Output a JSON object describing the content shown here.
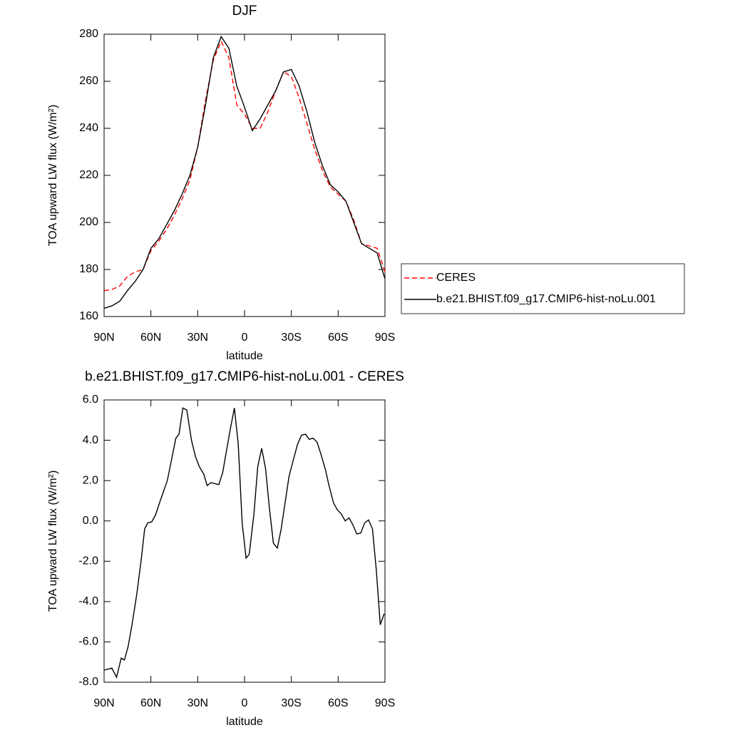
{
  "chart_data": [
    {
      "type": "line",
      "title": "DJF",
      "xlabel": "latitude",
      "ylabel": "TOA upward LW flux (W/m²)",
      "x": [
        90,
        85,
        80,
        75,
        70,
        65,
        60,
        55,
        50,
        45,
        40,
        35,
        30,
        25,
        20,
        15,
        10,
        5,
        0,
        -5,
        -10,
        -15,
        -20,
        -25,
        -30,
        -35,
        -40,
        -45,
        -50,
        -55,
        -60,
        -65,
        -70,
        -75,
        -80,
        -85,
        -90
      ],
      "series": [
        {
          "name": "CERES",
          "color": "#ff0000",
          "style": "dashed",
          "values": [
            171,
            171.5,
            173,
            177,
            179,
            180,
            188,
            192,
            197,
            203,
            210,
            218,
            232,
            252,
            269,
            277,
            270,
            250,
            246,
            240,
            240,
            247,
            256,
            264,
            262,
            253,
            242,
            231,
            222,
            215,
            212,
            209,
            201,
            191,
            190,
            189,
            179
          ]
        },
        {
          "name": "b.e21.BHIST.f09_g17.CMIP6-hist-noLu.001",
          "color": "#000000",
          "style": "solid",
          "values": [
            163.5,
            164.5,
            166.5,
            171,
            175,
            180,
            189,
            193,
            199,
            205,
            212,
            220,
            232,
            250,
            270,
            279,
            274,
            258,
            249,
            239,
            244,
            250,
            256,
            264,
            265,
            258,
            247,
            234,
            224,
            216,
            213,
            209,
            200,
            191,
            189,
            187,
            176
          ]
        }
      ],
      "xlim": [
        90,
        -90
      ],
      "xticks": [
        {
          "value": 90,
          "label": "90N"
        },
        {
          "value": 60,
          "label": "60N"
        },
        {
          "value": 30,
          "label": "30N"
        },
        0,
        {
          "value": -30,
          "label": "30S"
        },
        {
          "value": -60,
          "label": "60S"
        },
        {
          "value": -90,
          "label": "90S"
        }
      ],
      "ylim": [
        160,
        280
      ],
      "yticks": [
        160,
        180,
        200,
        220,
        240,
        260,
        280
      ],
      "legend": "right"
    },
    {
      "type": "line",
      "title": "b.e21.BHIST.f09_g17.CMIP6-hist-noLu.001 - CERES",
      "xlabel": "latitude",
      "ylabel": "TOA upward LW flux (W/m²)",
      "x": [
        90,
        85,
        82,
        79,
        77,
        74.5,
        72,
        69,
        66,
        64,
        62,
        59.5,
        57,
        54,
        49.5,
        44,
        42,
        39.5,
        37,
        34,
        31.5,
        29,
        26,
        24,
        21.5,
        16.5,
        14,
        11.5,
        9,
        6.5,
        4,
        1.5,
        -1,
        -3,
        -6,
        -8.5,
        -11,
        -13.5,
        -16,
        -18.5,
        -21,
        -23.5,
        -26,
        -28.5,
        -31.5,
        -34,
        -36.5,
        -39,
        -41.5,
        -44,
        -46.5,
        -49,
        -52,
        -54,
        -57,
        -59.5,
        -62,
        -64.5,
        -67,
        -69.5,
        -72,
        -74.5,
        -77,
        -79.5,
        -82,
        -84.5,
        -87,
        -89.5
      ],
      "color": "#000000",
      "values": [
        -7.4,
        -7.3,
        -7.75,
        -6.8,
        -6.9,
        -6.2,
        -5.1,
        -3.6,
        -1.8,
        -0.4,
        -0.1,
        -0.05,
        0.3,
        1.0,
        2.0,
        4.1,
        4.3,
        5.6,
        5.5,
        4.0,
        3.2,
        2.7,
        2.3,
        1.75,
        1.9,
        1.8,
        2.4,
        3.5,
        4.6,
        5.6,
        3.8,
        -0.1,
        -1.85,
        -1.65,
        0.3,
        2.7,
        3.6,
        2.6,
        0.6,
        -1.1,
        -1.35,
        -0.4,
        0.9,
        2.2,
        3.1,
        3.8,
        4.25,
        4.3,
        4.05,
        4.1,
        3.9,
        3.3,
        2.5,
        1.8,
        0.9,
        0.55,
        0.35,
        0.0,
        0.15,
        -0.2,
        -0.65,
        -0.6,
        -0.1,
        0.05,
        -0.4,
        -2.5,
        -5.15,
        -4.6
      ],
      "xlim": [
        90,
        -90
      ],
      "xticks": [
        {
          "value": 90,
          "label": "90N"
        },
        {
          "value": 60,
          "label": "60N"
        },
        {
          "value": 30,
          "label": "30N"
        },
        0,
        {
          "value": -30,
          "label": "30S"
        },
        {
          "value": -60,
          "label": "60S"
        },
        {
          "value": -90,
          "label": "90S"
        }
      ],
      "ylim": [
        -8,
        6
      ],
      "yticks": [
        {
          "value": -8,
          "label": "-8.0"
        },
        {
          "value": -6,
          "label": "-6.0"
        },
        {
          "value": -4,
          "label": "-4.0"
        },
        {
          "value": -2,
          "label": "-2.0"
        },
        {
          "value": 0,
          "label": "0.0"
        },
        {
          "value": 2,
          "label": "2.0"
        },
        {
          "value": 4,
          "label": "4.0"
        },
        {
          "value": 6,
          "label": "6.0"
        }
      ]
    }
  ]
}
